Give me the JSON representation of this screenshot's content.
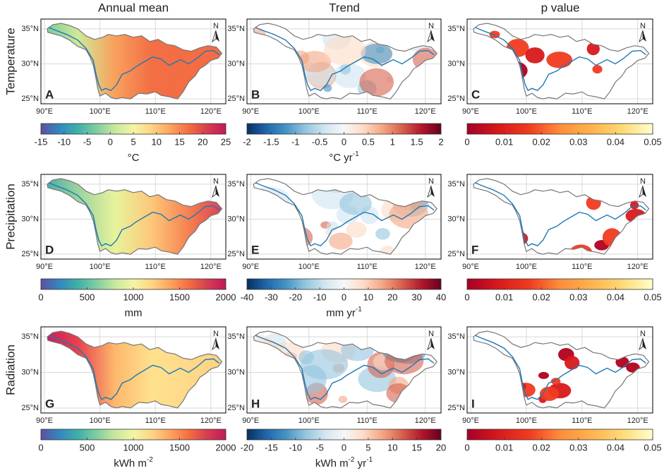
{
  "columns": [
    "Annual mean",
    "Trend",
    "p value"
  ],
  "map_axes": {
    "lat_ticks": [
      {
        "value": 35,
        "label": "35°N"
      },
      {
        "value": 30,
        "label": "30°N"
      },
      {
        "value": 25,
        "label": "25°N"
      }
    ],
    "lon_ticks": [
      {
        "value": 90,
        "label": "90°E"
      },
      {
        "value": 100,
        "label": "100°E"
      },
      {
        "value": 110,
        "label": "110°E"
      },
      {
        "value": 120,
        "label": "120°E"
      }
    ],
    "north": "N"
  },
  "rows": [
    {
      "label": "Temperature",
      "panels": [
        {
          "letter": "A",
          "colorbar": {
            "range": [
              -15,
              25
            ],
            "ticks": [
              -15,
              -10,
              -5,
              0,
              5,
              10,
              15,
              20,
              25
            ],
            "unit": [
              {
                "text": "°C"
              }
            ]
          }
        },
        {
          "letter": "B",
          "colorbar": {
            "range": [
              -2,
              2
            ],
            "ticks": [
              -2,
              -1.5,
              -1,
              -0.5,
              0,
              0.5,
              1,
              1.5,
              2
            ],
            "unit": [
              {
                "text": "°C yr"
              },
              {
                "sup": "-1"
              }
            ]
          }
        },
        {
          "letter": "C",
          "colorbar": {
            "range": [
              0,
              0.05
            ],
            "ticks": [
              0,
              0.01,
              0.02,
              0.03,
              0.04,
              0.05
            ],
            "unit": []
          }
        }
      ]
    },
    {
      "label": "Precipitation",
      "panels": [
        {
          "letter": "D",
          "colorbar": {
            "range": [
              0,
              2000
            ],
            "ticks": [
              0,
              500,
              1000,
              1500,
              2000
            ],
            "unit": [
              {
                "text": "mm"
              }
            ]
          }
        },
        {
          "letter": "E",
          "colorbar": {
            "range": [
              -40,
              40
            ],
            "ticks": [
              -40,
              -30,
              -20,
              -10,
              0,
              10,
              20,
              30,
              40
            ],
            "unit": [
              {
                "text": "mm yr"
              },
              {
                "sup": "-1"
              }
            ]
          }
        },
        {
          "letter": "F",
          "colorbar": {
            "range": [
              0,
              0.05
            ],
            "ticks": [
              0,
              0.01,
              0.02,
              0.03,
              0.04,
              0.05
            ],
            "unit": []
          }
        }
      ]
    },
    {
      "label": "Radiation",
      "panels": [
        {
          "letter": "G",
          "colorbar": {
            "range": [
              0,
              2000
            ],
            "ticks": [
              0,
              500,
              1000,
              1500,
              2000
            ],
            "unit": [
              {
                "text": "kWh m"
              },
              {
                "sup": "-2"
              }
            ]
          }
        },
        {
          "letter": "H",
          "colorbar": {
            "range": [
              -20,
              20
            ],
            "ticks": [
              -20,
              -15,
              -10,
              -5,
              0,
              5,
              10,
              15,
              20
            ],
            "unit": [
              {
                "text": "kWh m"
              },
              {
                "sup": "-2"
              },
              {
                "text": " yr"
              },
              {
                "sup": "-1"
              }
            ]
          }
        },
        {
          "letter": "I",
          "colorbar": {
            "range": [
              0,
              0.05
            ],
            "ticks": [
              0,
              0.01,
              0.02,
              0.03,
              0.04,
              0.05
            ],
            "unit": []
          }
        }
      ]
    }
  ]
}
